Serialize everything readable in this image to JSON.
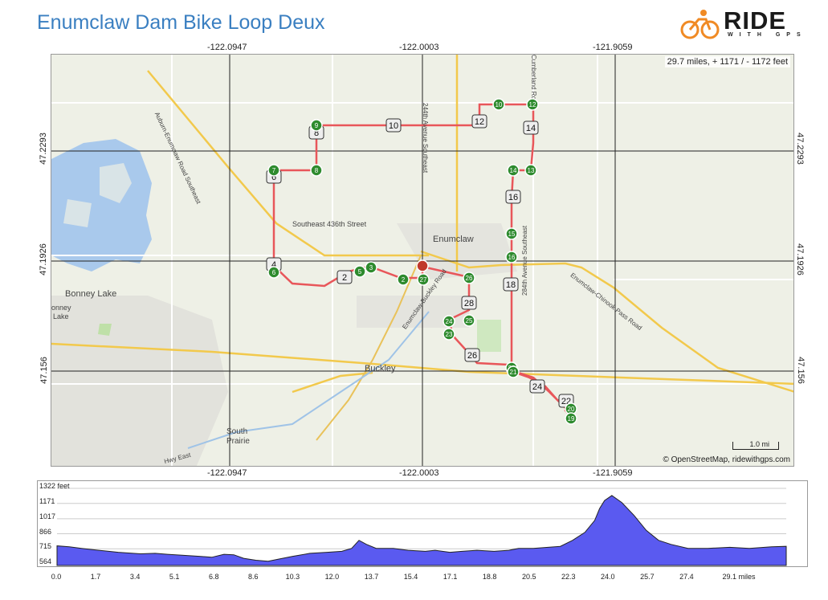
{
  "header": {
    "title": "Enumclaw Dam Bike Loop Deux",
    "logo_word": "RIDE",
    "logo_sub": "WITH GPS"
  },
  "map": {
    "stats": "29.7 miles, + 1171 / - 1172 feet",
    "attribution": "© OpenStreetMap, ridewithgps.com",
    "scale_label": "1.0 mi",
    "lon_labels": [
      "-122.0947",
      "-122.0003",
      "-121.9059"
    ],
    "lat_labels": [
      "47.2293",
      "47.1926",
      "47.156"
    ],
    "places": {
      "enumclaw": "Enumclaw",
      "bonney_lake": "Bonney Lake",
      "bonney_lake_2": "onney",
      "bonney_lake_3": "Lake",
      "buckley": "Buckley",
      "south_prairie_1": "South",
      "south_prairie_2": "Prairie",
      "se436": "Southeast 436th Street",
      "enumclaw_buckley": "Enumclaw-Buckley Road",
      "auburn_enumclaw": "Auburn-Enumclaw Road Southeast",
      "ave244": "244th Avenue Southeast",
      "ave284": "284th Avenue Southeast",
      "chinook": "Enumclaw-Chinook Pass Road",
      "cumberland": "Cumberland Road",
      "hwy_east": "Hwy East"
    },
    "green_markers": [
      "9",
      "8",
      "7",
      "6",
      "5",
      "3",
      "2",
      "27",
      "26",
      "25",
      "24",
      "23",
      "22",
      "21",
      "20",
      "19",
      "15",
      "16",
      "14",
      "13",
      "12",
      "10"
    ],
    "mile_markers": [
      "8",
      "10",
      "12",
      "14",
      "6",
      "4",
      "2",
      "16",
      "18",
      "28",
      "26",
      "24",
      "22"
    ]
  },
  "elevation_chart": {
    "chart_data": {
      "type": "area",
      "x_unit": "miles",
      "y_unit": "feet",
      "ylim": [
        564,
        1322
      ],
      "xlim": [
        0,
        29.7
      ],
      "y_ticks": [
        "1322 feet",
        "1171",
        "1017",
        "866",
        "715",
        "564"
      ],
      "x_ticks": [
        "0.0",
        "1.7",
        "3.4",
        "5.1",
        "6.8",
        "8.6",
        "10.3",
        "12.0",
        "13.7",
        "15.4",
        "17.1",
        "18.8",
        "20.5",
        "22.3",
        "24.0",
        "25.7",
        "27.4",
        "29.1 miles"
      ],
      "x": [
        0,
        0.5,
        1.0,
        1.7,
        2.5,
        3.4,
        4.0,
        4.5,
        5.1,
        5.8,
        6.3,
        6.8,
        7.2,
        7.6,
        8.1,
        8.6,
        9.0,
        9.6,
        10.3,
        11.0,
        11.6,
        12.0,
        12.3,
        12.6,
        13.0,
        13.7,
        14.3,
        15.0,
        15.4,
        16.0,
        16.5,
        17.1,
        17.8,
        18.4,
        18.8,
        19.4,
        20.0,
        20.5,
        21.0,
        21.5,
        21.9,
        22.1,
        22.3,
        22.6,
        23.0,
        23.5,
        24.0,
        24.5,
        25.0,
        25.7,
        26.5,
        27.4,
        28.2,
        29.1,
        29.7
      ],
      "y": [
        745,
        735,
        720,
        700,
        680,
        665,
        670,
        660,
        650,
        640,
        630,
        660,
        655,
        620,
        600,
        590,
        610,
        640,
        670,
        680,
        690,
        720,
        800,
        760,
        720,
        720,
        700,
        690,
        700,
        680,
        690,
        700,
        690,
        700,
        720,
        720,
        730,
        740,
        800,
        880,
        1000,
        1120,
        1200,
        1250,
        1180,
        1050,
        900,
        800,
        760,
        720,
        720,
        730,
        720,
        735,
        740
      ]
    }
  }
}
